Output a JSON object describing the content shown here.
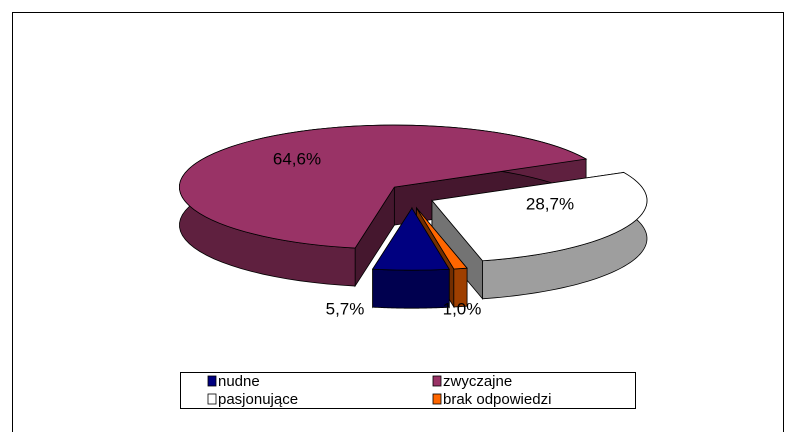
{
  "chart_data": {
    "type": "pie",
    "categories": [
      "nudne",
      "zwyczajne",
      "pasjonujące",
      "brak odpowiedzi"
    ],
    "values": [
      5.7,
      64.6,
      28.7,
      1.0
    ],
    "value_labels": [
      "5,7%",
      "64,6%",
      "28,7%",
      "1,0%"
    ],
    "colors": [
      "#000080",
      "#993366",
      "#ffffff",
      "#ff6600"
    ],
    "legend": "bottom"
  }
}
